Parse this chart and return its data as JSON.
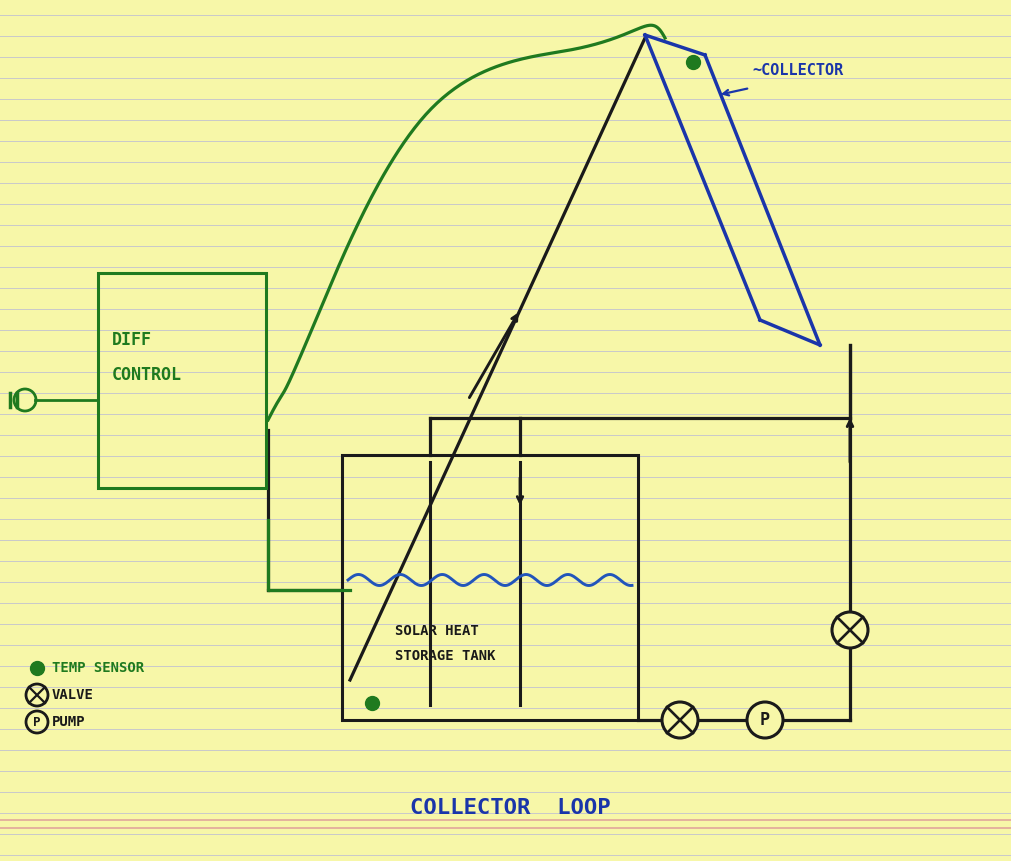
{
  "bg_color": "#f7f7a8",
  "line_color_dark": "#1a1a1a",
  "line_color_green": "#1f7a1f",
  "line_color_blue": "#1a35aa",
  "line_color_water": "#2255bb",
  "title": "COLLECTOR  LOOP",
  "collector_label": "~COLLECTOR",
  "diff_control_text1": "DIFF",
  "diff_control_text2": "CONTROL",
  "solar_tank_text1": "SOLAR HEAT",
  "solar_tank_text2": "STORAGE TANK",
  "legend_sensor": "TEMP SENSOR",
  "legend_valve": "VALVE",
  "legend_pump": "PUMP",
  "notebook_line_color": "#b0b0dd",
  "notebook_line_color2": "#dd9999"
}
